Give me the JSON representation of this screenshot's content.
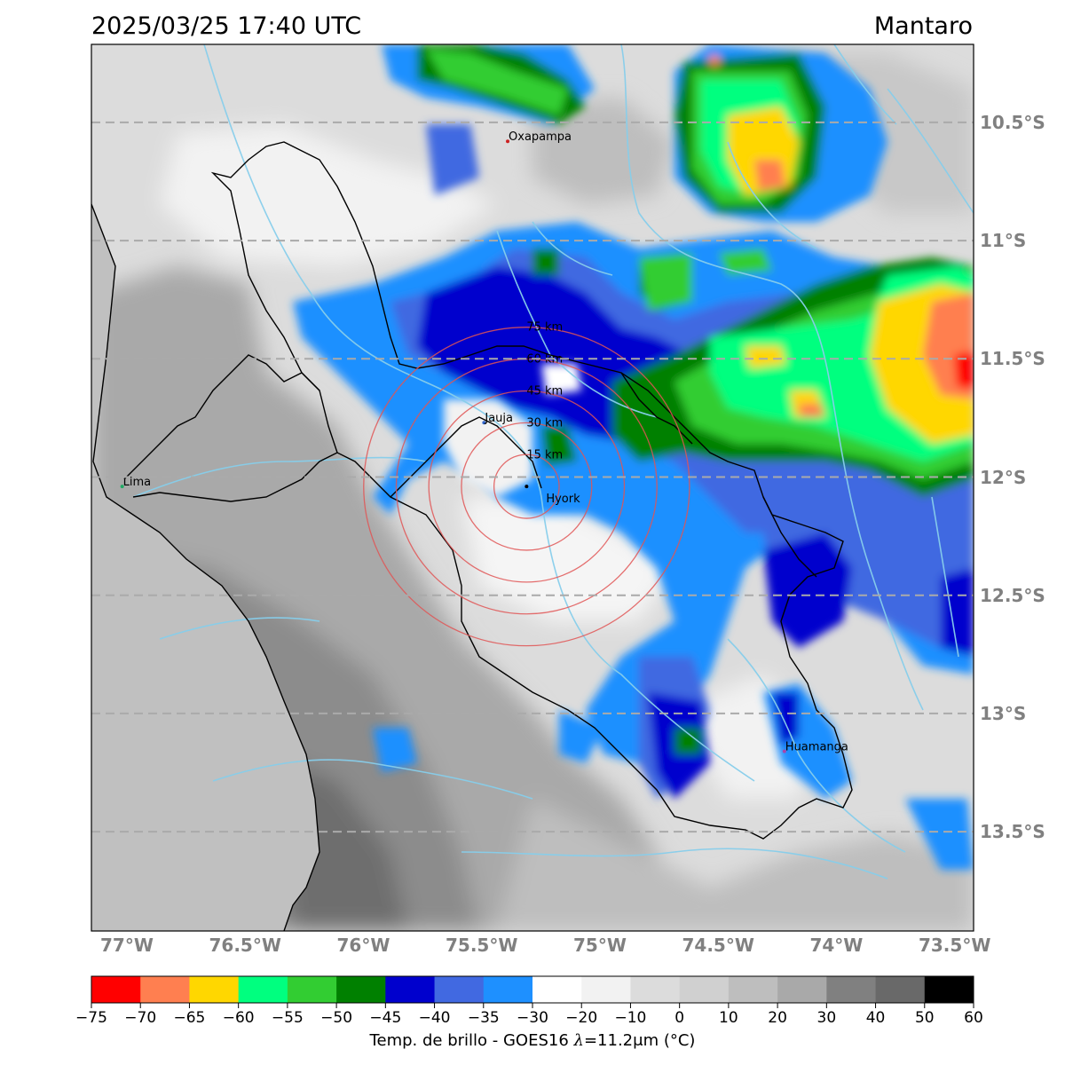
{
  "header": {
    "timestamp": "2025/03/25 17:40 UTC",
    "region": "Mantaro"
  },
  "map": {
    "extent": {
      "lon_min": -77.15,
      "lon_max": -73.42,
      "lat_max": -10.17,
      "lat_min": -13.92
    },
    "lon_ticks": [
      {
        "value": -77.0,
        "label": "77°W"
      },
      {
        "value": -76.5,
        "label": "76.5°W"
      },
      {
        "value": -76.0,
        "label": "76°W"
      },
      {
        "value": -75.5,
        "label": "75.5°W"
      },
      {
        "value": -75.0,
        "label": "75°W"
      },
      {
        "value": -74.5,
        "label": "74.5°W"
      },
      {
        "value": -74.0,
        "label": "74°W"
      },
      {
        "value": -73.5,
        "label": "73.5°W"
      }
    ],
    "lat_ticks": [
      {
        "value": -10.5,
        "label": "10.5°S"
      },
      {
        "value": -11.0,
        "label": "11°S"
      },
      {
        "value": -11.5,
        "label": "11.5°S"
      },
      {
        "value": -12.0,
        "label": "12°S"
      },
      {
        "value": -12.5,
        "label": "12.5°S"
      },
      {
        "value": -13.0,
        "label": "13°S"
      },
      {
        "value": -13.5,
        "label": "13.5°S"
      }
    ],
    "radar_center": {
      "lon": -75.31,
      "lat": -12.04,
      "name": "Hyork"
    },
    "range_rings": [
      {
        "km": 15,
        "label": "15 km"
      },
      {
        "km": 30,
        "label": "30 km"
      },
      {
        "km": 45,
        "label": "45 km"
      },
      {
        "km": 60,
        "label": "60 km"
      },
      {
        "km": 75,
        "label": "75 km"
      }
    ],
    "cities": [
      {
        "name": "Oxapampa",
        "lon": -75.39,
        "lat": -10.58,
        "color": "#cc2222"
      },
      {
        "name": "Jauja",
        "lon": -75.49,
        "lat": -11.77,
        "color": "#3366cc"
      },
      {
        "name": "Lima",
        "lon": -77.02,
        "lat": -12.04,
        "color": "#22aa66"
      },
      {
        "name": "Huamanga",
        "lon": -74.22,
        "lat": -13.16,
        "color": "#aa44aa"
      }
    ],
    "colors": {
      "ocean": "#c0c0c0",
      "river": "#87ceeb",
      "border": "#000000",
      "ring": "#e05555",
      "grid": "#aaaaaa"
    }
  },
  "colorbar": {
    "label_text": "Temp. de brillo - GOES16",
    "label_symbol": "λ",
    "label_value": "=11.2μm (°C)",
    "ticks": [
      "−75",
      "−70",
      "−65",
      "−60",
      "−55",
      "−50",
      "−45",
      "−40",
      "−35",
      "−30",
      "−20",
      "−10",
      "0",
      "10",
      "20",
      "30",
      "40",
      "50",
      "60"
    ],
    "colors": [
      "#ff0000",
      "#ff7f50",
      "#ffd700",
      "#00ff7f",
      "#32cd32",
      "#008000",
      "#0000cd",
      "#4169e1",
      "#1e90ff",
      "#ffffff",
      "#f2f2f2",
      "#dcdcdc",
      "#d0d0d0",
      "#bebebe",
      "#a9a9a9",
      "#808080",
      "#696969",
      "#000000"
    ]
  }
}
